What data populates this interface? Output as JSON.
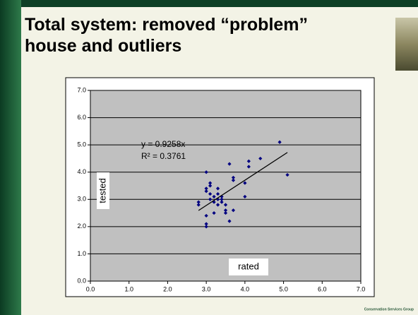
{
  "chart_data": {
    "type": "scatter",
    "title": "Total system: removed “problem” house and outliers",
    "x_label": "rated",
    "y_label": "tested",
    "equation": "y = 0.9258x",
    "r_squared": "R² = 0.3761",
    "trendline": {
      "slope": 0.9258,
      "color": "#000000"
    },
    "footer": "Conservation Services Group",
    "color": "#000080",
    "x": [
      2.8,
      2.8,
      3.0,
      3.0,
      3.0,
      3.0,
      3.0,
      3.0,
      3.1,
      3.1,
      3.1,
      3.1,
      3.2,
      3.2,
      3.3,
      3.3,
      3.3,
      3.3,
      3.4,
      3.4,
      3.5,
      3.5,
      3.5,
      3.6,
      3.6,
      3.7,
      3.7,
      3.7,
      3.4,
      3.2,
      4.0,
      4.0,
      4.1,
      4.1,
      4.4,
      4.9,
      5.1
    ],
    "y": [
      2.9,
      2.8,
      4.0,
      3.4,
      3.3,
      2.4,
      2.1,
      2.0,
      3.5,
      3.6,
      3.2,
      3.0,
      3.1,
      2.9,
      3.4,
      3.2,
      3.0,
      2.8,
      3.1,
      2.9,
      2.8,
      2.6,
      2.5,
      4.3,
      2.2,
      3.8,
      3.7,
      2.6,
      3.0,
      2.5,
      3.6,
      3.1,
      4.4,
      4.2,
      4.5,
      5.1,
      3.9
    ],
    "xlim": [
      0,
      7
    ],
    "ylim": [
      0,
      7
    ],
    "xticks": [
      {
        "value": 0,
        "label": "0.0"
      },
      {
        "value": 1,
        "label": "1.0"
      },
      {
        "value": 2,
        "label": "2.0"
      },
      {
        "value": 3,
        "label": "3.0"
      },
      {
        "value": 4,
        "label": "4.0"
      },
      {
        "value": 5,
        "label": "5.0"
      },
      {
        "value": 6,
        "label": "6.0"
      },
      {
        "value": 7,
        "label": "7.0"
      }
    ],
    "yticks": [
      {
        "value": 0,
        "label": "0.0"
      },
      {
        "value": 1,
        "label": "1.0"
      },
      {
        "value": 2,
        "label": "2.0"
      },
      {
        "value": 3,
        "label": "3.0"
      },
      {
        "value": 4,
        "label": "4.0"
      },
      {
        "value": 5,
        "label": "5.0"
      },
      {
        "value": 6,
        "label": "6.0"
      },
      {
        "value": 7,
        "label": "7.0"
      }
    ],
    "grid": true
  }
}
